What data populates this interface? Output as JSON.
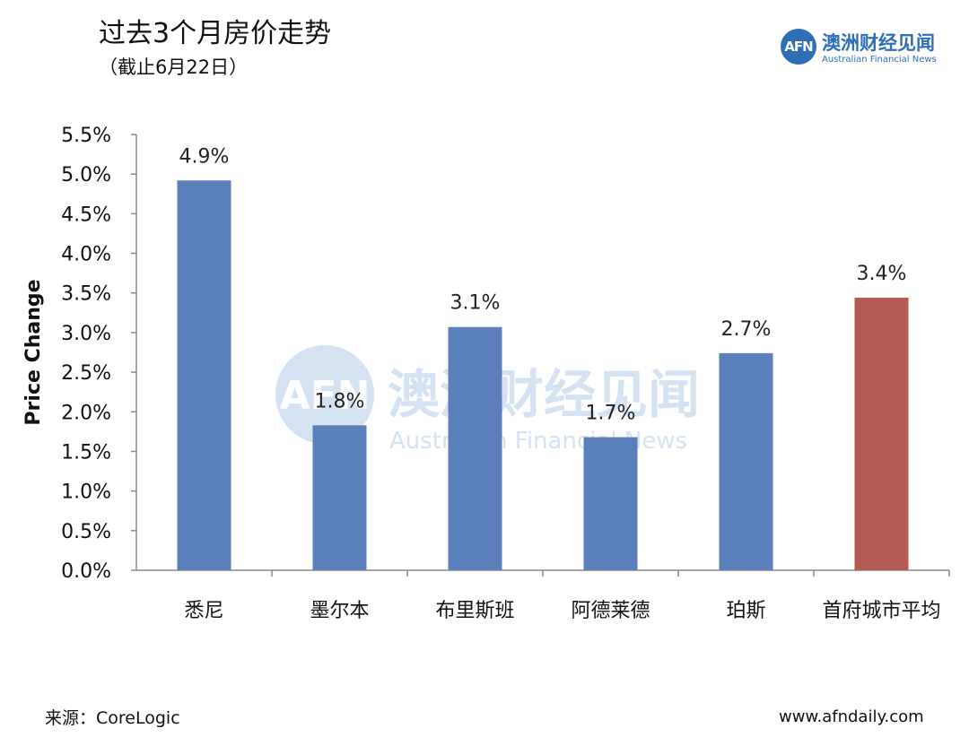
{
  "header": {
    "title": "过去3个月房价走势",
    "subtitle": "（截止6月22日）"
  },
  "logo": {
    "mark": "AFN",
    "name_cn": "澳洲财经见闻",
    "name_en": "Australian Financial News"
  },
  "watermark": {
    "mark": "AFN",
    "name_cn": "澳洲财经见闻",
    "name_en": "Australian Financial News"
  },
  "footer": {
    "source": "来源：CoreLogic",
    "website": "www.afndaily.com"
  },
  "chart_data": {
    "type": "bar",
    "title": "过去3个月房价走势",
    "subtitle": "（截止6月22日）",
    "ylabel": "Price Change",
    "ylim": [
      0,
      5.5
    ],
    "yticks": [
      0,
      0.5,
      1.0,
      1.5,
      2.0,
      2.5,
      3.0,
      3.5,
      4.0,
      4.5,
      5.0,
      5.5
    ],
    "ytick_labels": [
      "0.0%",
      "0.5%",
      "1.0%",
      "1.5%",
      "2.0%",
      "2.5%",
      "3.0%",
      "3.5%",
      "4.0%",
      "4.5%",
      "5.0%",
      "5.5%"
    ],
    "categories": [
      "悉尼",
      "墨尔本",
      "布里斯班",
      "阿德莱德",
      "珀斯",
      "首府城市平均"
    ],
    "values": [
      4.92,
      1.83,
      3.07,
      1.68,
      2.74,
      3.44
    ],
    "data_labels": [
      "4.9%",
      "1.8%",
      "3.1%",
      "1.7%",
      "2.7%",
      "3.4%"
    ],
    "colors": [
      "#5a7fbb",
      "#5a7fbb",
      "#5a7fbb",
      "#5a7fbb",
      "#5a7fbb",
      "#b35a52"
    ],
    "grid": false,
    "legend": "none"
  }
}
